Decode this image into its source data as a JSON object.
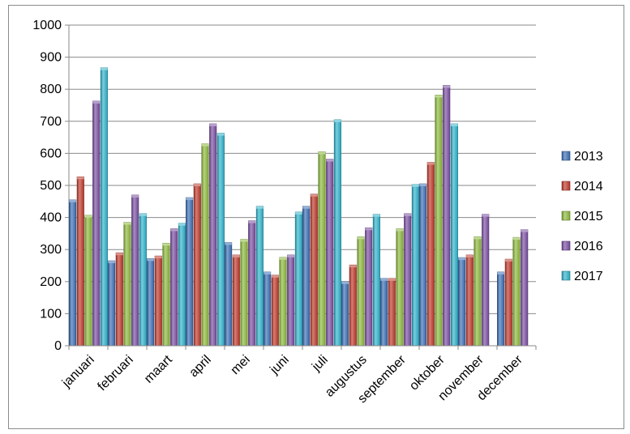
{
  "chart_data": {
    "type": "bar",
    "categories": [
      "januari",
      "februari",
      "maart",
      "april",
      "mei",
      "juni",
      "juli",
      "augustus",
      "september",
      "oktober",
      "november",
      "december"
    ],
    "series": [
      {
        "name": "2013",
        "values": [
          455,
          265,
          272,
          462,
          322,
          230,
          435,
          200,
          210,
          505,
          275,
          230
        ]
      },
      {
        "name": "2014",
        "values": [
          527,
          290,
          280,
          505,
          283,
          220,
          473,
          252,
          210,
          572,
          283,
          270
        ]
      },
      {
        "name": "2015",
        "values": [
          407,
          385,
          320,
          630,
          332,
          276,
          605,
          340,
          365,
          782,
          340,
          338
        ]
      },
      {
        "name": "2016",
        "values": [
          763,
          470,
          365,
          692,
          390,
          283,
          582,
          368,
          412,
          812,
          410,
          362
        ]
      },
      {
        "name": "2017",
        "values": [
          867,
          412,
          382,
          663,
          435,
          417,
          705,
          410,
          503,
          692,
          null,
          null
        ]
      }
    ],
    "title": "",
    "xlabel": "",
    "ylabel": "",
    "ylim": [
      0,
      1000
    ],
    "yticks": [
      0,
      100,
      200,
      300,
      400,
      500,
      600,
      700,
      800,
      900,
      1000
    ],
    "grid": true,
    "legend": "right",
    "colors": {
      "2013": "#3b6fb6",
      "2014": "#c0392b",
      "2015": "#8dba3b",
      "2016": "#7b4ea3",
      "2017": "#2fb4cc"
    }
  }
}
